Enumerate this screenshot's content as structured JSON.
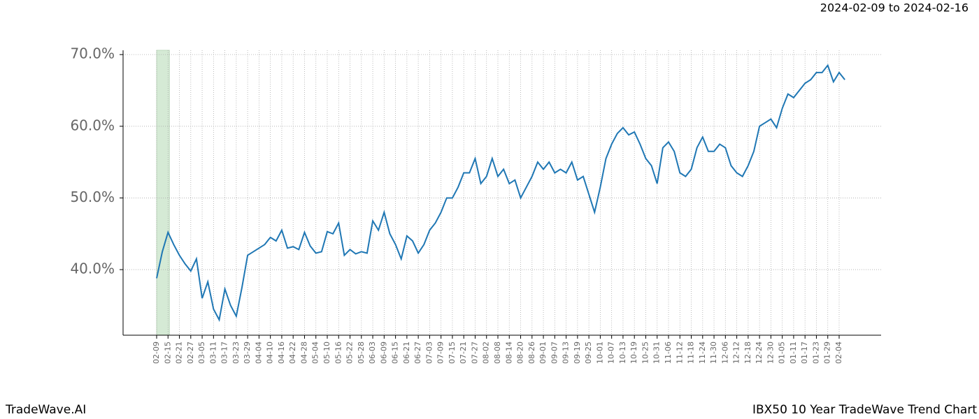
{
  "chart_data": {
    "type": "line",
    "title": "2024-02-09 to 2024-02-16",
    "footer_left": "TradeWave.AI",
    "footer_right": "IBX50 10 Year TradeWave Trend Chart",
    "categories": [
      "02-09",
      null,
      "02-15",
      null,
      "02-21",
      null,
      "02-27",
      null,
      "03-05",
      null,
      "03-11",
      null,
      "03-17",
      null,
      "03-23",
      null,
      "03-29",
      null,
      "04-04",
      null,
      "04-10",
      null,
      "04-16",
      null,
      "04-22",
      null,
      "04-28",
      null,
      "05-04",
      null,
      "05-10",
      null,
      "05-16",
      null,
      "05-22",
      null,
      "05-28",
      null,
      "06-03",
      null,
      "06-09",
      null,
      "06-15",
      null,
      "06-21",
      null,
      "06-27",
      null,
      "07-03",
      null,
      "07-09",
      null,
      "07-15",
      null,
      "07-21",
      null,
      "07-27",
      null,
      "08-02",
      null,
      "08-08",
      null,
      "08-14",
      null,
      "08-20",
      null,
      "08-26",
      null,
      "09-01",
      null,
      "09-07",
      null,
      "09-13",
      null,
      "09-19",
      null,
      "09-25",
      null,
      "10-01",
      null,
      "10-07",
      null,
      "10-13",
      null,
      "10-19",
      null,
      "10-25",
      null,
      "10-31",
      null,
      "11-06",
      null,
      "11-12",
      null,
      "11-18",
      null,
      "11-24",
      null,
      "11-30",
      null,
      "12-06",
      null,
      "12-12",
      null,
      "12-18",
      null,
      "12-24",
      null,
      "12-30",
      null,
      "01-05",
      null,
      "01-11",
      null,
      "01-17",
      null,
      "01-23",
      null,
      "01-29",
      null,
      "02-04",
      null
    ],
    "series": [
      {
        "color": "#1f77b4",
        "values": [
          38.8,
          42.5,
          45.2,
          43.5,
          42.0,
          40.8,
          39.8,
          41.5,
          36.0,
          38.3,
          34.5,
          33.0,
          37.3,
          35.0,
          33.5,
          37.5,
          42.0,
          42.5,
          43.0,
          43.5,
          44.5,
          44.0,
          45.5,
          43.0,
          43.2,
          42.8,
          45.2,
          43.3,
          42.3,
          42.5,
          45.3,
          45.0,
          46.5,
          42.0,
          42.8,
          42.2,
          42.5,
          42.3,
          46.8,
          45.5,
          48.0,
          45.0,
          43.5,
          41.5,
          44.7,
          44.0,
          42.3,
          43.5,
          45.5,
          46.5,
          48.0,
          50.0,
          50.0,
          51.5,
          53.5,
          53.5,
          55.5,
          52.0,
          53.0,
          55.5,
          53.0,
          54.0,
          52.0,
          52.5,
          50.0,
          51.5,
          53.0,
          55.0,
          54.0,
          55.0,
          53.5,
          54.0,
          53.5,
          55.0,
          52.5,
          53.0,
          50.5,
          48.0,
          51.5,
          55.5,
          57.5,
          59.0,
          59.8,
          58.8,
          59.2,
          57.5,
          55.5,
          54.5,
          52.0,
          57.0,
          57.8,
          56.5,
          53.5,
          53.0,
          54.0,
          57.0,
          58.5,
          56.5,
          56.5,
          57.5,
          57.0,
          54.5,
          53.5,
          53.0,
          54.5,
          56.5,
          60.0,
          60.5,
          61.0,
          59.8,
          62.5,
          64.5,
          64.0,
          65.0,
          66.0,
          66.5,
          67.5,
          67.5,
          68.5,
          66.2,
          67.5,
          66.5
        ]
      }
    ],
    "highlight": [
      0,
      2
    ],
    "highlight_color": "#d5ead5",
    "ylim": [
      30.85,
      70.6
    ],
    "yticks": [
      {
        "value": 40,
        "label": "40.0%"
      },
      {
        "value": 50,
        "label": "50.0%"
      },
      {
        "value": 60,
        "label": "60.0%"
      },
      {
        "value": 70,
        "label": "70.0%"
      }
    ],
    "grid": true
  }
}
